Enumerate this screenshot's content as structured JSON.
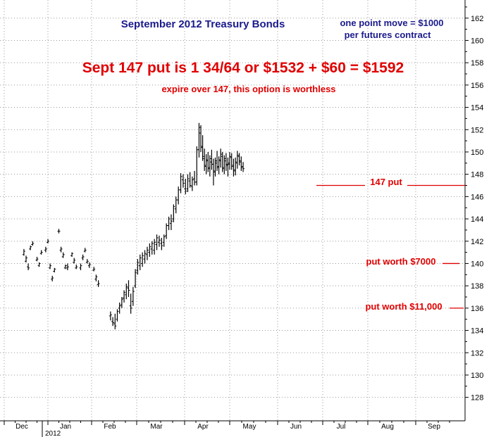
{
  "chart_data": {
    "type": "bar",
    "subtype": "ohlc",
    "title": "September 2012 Treasury Bonds",
    "note_line1": "one point move = $1000",
    "note_line2": "per futures contract",
    "headline": "Sept 147 put is 1 34/64 or $1532 + $60 = $1592",
    "subheadline": "expire over 147, this option is worthless",
    "y_axis": {
      "side": "right",
      "ylim": [
        126,
        163
      ],
      "ticks": [
        128,
        130,
        132,
        134,
        136,
        138,
        140,
        142,
        144,
        146,
        148,
        150,
        152,
        154,
        156,
        158,
        160,
        162
      ]
    },
    "x_axis": {
      "months": [
        "Dec",
        "Jan",
        "Feb",
        "Mar",
        "Apr",
        "May",
        "Jun",
        "Jul",
        "Aug",
        "Sep"
      ],
      "year_label": "2012",
      "grid": "dotted"
    },
    "series": [
      {
        "kind": "ohlc",
        "bars": [
          [
            0.45,
            140.8,
            141.3,
            140.7,
            141.1
          ],
          [
            0.5,
            140.2,
            140.7,
            140.1,
            140.5
          ],
          [
            0.55,
            139.7,
            140.0,
            139.4,
            139.6
          ],
          [
            0.6,
            141.3,
            141.6,
            141.2,
            141.5
          ],
          [
            0.65,
            141.7,
            142.0,
            141.6,
            141.8
          ],
          [
            0.75,
            140.3,
            140.6,
            140.2,
            140.4
          ],
          [
            0.8,
            139.8,
            140.1,
            139.7,
            140.0
          ],
          [
            0.85,
            140.9,
            141.2,
            140.8,
            141.0
          ],
          [
            0.95,
            141.2,
            141.5,
            141.0,
            141.3
          ],
          [
            1.0,
            141.9,
            142.2,
            141.8,
            142.0
          ],
          [
            1.05,
            139.6,
            140.0,
            139.5,
            139.8
          ],
          [
            1.1,
            138.6,
            138.9,
            138.4,
            138.7
          ],
          [
            1.15,
            139.3,
            139.6,
            139.2,
            139.5
          ],
          [
            1.25,
            142.9,
            143.1,
            142.7,
            142.9
          ],
          [
            1.3,
            141.2,
            141.5,
            141.0,
            141.3
          ],
          [
            1.35,
            140.6,
            141.0,
            140.5,
            140.8
          ],
          [
            1.4,
            139.6,
            139.9,
            139.5,
            139.8
          ],
          [
            1.45,
            139.6,
            140.0,
            139.4,
            139.7
          ],
          [
            1.55,
            140.7,
            141.0,
            140.6,
            140.9
          ],
          [
            1.6,
            140.1,
            140.5,
            140.0,
            140.3
          ],
          [
            1.65,
            139.6,
            139.9,
            139.5,
            139.7
          ],
          [
            1.75,
            139.6,
            140.0,
            139.4,
            139.8
          ],
          [
            1.8,
            140.5,
            140.8,
            140.3,
            140.6
          ],
          [
            1.85,
            141.1,
            141.4,
            141.0,
            141.2
          ],
          [
            1.9,
            140.1,
            140.4,
            140.0,
            140.2
          ],
          [
            1.95,
            139.8,
            140.1,
            139.6,
            139.9
          ],
          [
            2.05,
            139.4,
            139.7,
            139.3,
            139.5
          ],
          [
            2.1,
            138.6,
            139.0,
            138.4,
            138.8
          ],
          [
            2.15,
            138.1,
            138.5,
            137.9,
            138.2
          ],
          [
            2.42,
            135.3,
            135.7,
            134.9,
            135.4
          ],
          [
            2.47,
            134.8,
            135.2,
            134.4,
            134.7
          ],
          [
            2.52,
            134.6,
            135.5,
            134.1,
            134.4
          ],
          [
            2.57,
            135.0,
            135.9,
            134.8,
            135.7
          ],
          [
            2.62,
            136.0,
            136.5,
            135.5,
            136.2
          ],
          [
            2.67,
            136.3,
            137.0,
            136.0,
            136.8
          ],
          [
            2.72,
            136.9,
            137.6,
            136.5,
            137.4
          ],
          [
            2.77,
            137.2,
            138.2,
            136.8,
            137.9
          ],
          [
            2.82,
            137.8,
            138.5,
            137.0,
            137.6
          ],
          [
            2.87,
            136.2,
            137.3,
            135.5,
            136.0
          ],
          [
            2.92,
            136.6,
            137.9,
            136.2,
            137.5
          ],
          [
            2.97,
            138.0,
            139.5,
            137.8,
            139.2
          ],
          [
            3.02,
            139.4,
            140.4,
            139.0,
            140.1
          ],
          [
            3.07,
            139.8,
            140.8,
            139.4,
            140.5
          ],
          [
            3.12,
            140.0,
            141.0,
            139.7,
            140.7
          ],
          [
            3.17,
            140.4,
            141.2,
            140.0,
            140.9
          ],
          [
            3.22,
            140.8,
            141.5,
            140.3,
            141.2
          ],
          [
            3.27,
            141.0,
            141.8,
            140.6,
            141.5
          ],
          [
            3.32,
            141.3,
            142.0,
            140.8,
            141.8
          ],
          [
            3.37,
            141.2,
            142.2,
            140.8,
            141.9
          ],
          [
            3.42,
            141.7,
            142.6,
            141.2,
            142.3
          ],
          [
            3.47,
            141.9,
            142.5,
            141.5,
            142.1
          ],
          [
            3.52,
            141.8,
            142.3,
            141.2,
            141.6
          ],
          [
            3.57,
            141.9,
            142.6,
            141.5,
            142.4
          ],
          [
            3.62,
            142.5,
            143.6,
            142.2,
            143.4
          ],
          [
            3.67,
            143.4,
            144.2,
            143.0,
            144.0
          ],
          [
            3.72,
            143.6,
            144.4,
            143.0,
            143.8
          ],
          [
            3.77,
            144.0,
            145.3,
            143.7,
            145.1
          ],
          [
            3.82,
            144.9,
            146.0,
            144.5,
            145.7
          ],
          [
            3.87,
            145.7,
            146.9,
            145.3,
            146.6
          ],
          [
            3.92,
            146.6,
            148.1,
            146.3,
            147.8
          ],
          [
            3.97,
            147.5,
            148.0,
            146.8,
            147.2
          ],
          [
            4.02,
            146.7,
            147.6,
            146.2,
            146.5
          ],
          [
            4.07,
            146.7,
            148.0,
            146.4,
            147.6
          ],
          [
            4.12,
            147.4,
            148.2,
            146.8,
            147.0
          ],
          [
            4.17,
            146.9,
            147.8,
            146.5,
            147.5
          ],
          [
            4.22,
            147.6,
            148.3,
            147.0,
            147.3
          ],
          [
            4.27,
            147.3,
            150.5,
            147.0,
            150.2
          ],
          [
            4.32,
            150.2,
            152.6,
            149.5,
            152.2
          ],
          [
            4.36,
            151.7,
            152.4,
            150.0,
            150.5
          ],
          [
            4.4,
            150.4,
            151.5,
            149.2,
            149.6
          ],
          [
            4.44,
            149.4,
            150.3,
            148.3,
            148.8
          ],
          [
            4.48,
            148.7,
            149.8,
            148.0,
            149.3
          ],
          [
            4.52,
            149.2,
            150.0,
            148.2,
            148.5
          ],
          [
            4.56,
            148.6,
            149.7,
            147.8,
            149.4
          ],
          [
            4.6,
            149.1,
            150.2,
            148.4,
            148.9
          ],
          [
            4.64,
            148.9,
            149.4,
            147.0,
            148.2
          ],
          [
            4.68,
            148.3,
            149.5,
            147.8,
            149.2
          ],
          [
            4.72,
            149.0,
            150.1,
            148.3,
            148.6
          ],
          [
            4.76,
            148.7,
            149.6,
            148.0,
            149.3
          ],
          [
            4.8,
            149.2,
            150.3,
            148.6,
            149.8
          ],
          [
            4.84,
            149.6,
            150.0,
            148.2,
            148.5
          ],
          [
            4.88,
            148.6,
            149.7,
            148.0,
            149.4
          ],
          [
            4.92,
            149.2,
            149.9,
            148.3,
            148.8
          ],
          [
            4.96,
            148.9,
            149.5,
            147.8,
            149.0
          ],
          [
            5.0,
            148.9,
            150.0,
            148.4,
            149.6
          ],
          [
            5.04,
            149.5,
            149.9,
            148.4,
            148.7
          ],
          [
            5.08,
            148.8,
            149.4,
            147.8,
            148.3
          ],
          [
            5.12,
            148.4,
            149.5,
            147.9,
            149.1
          ],
          [
            5.16,
            149.0,
            150.1,
            148.5,
            149.7
          ],
          [
            5.2,
            149.6,
            149.9,
            148.8,
            149.2
          ],
          [
            5.24,
            149.1,
            149.6,
            148.3,
            148.6
          ],
          [
            5.28,
            148.7,
            149.1,
            148.2,
            148.5
          ]
        ]
      }
    ],
    "annotations": [
      {
        "text": "147 put",
        "y": 147
      },
      {
        "text": "put worth $7000",
        "y": 140
      },
      {
        "text": "put worth $11,000",
        "y": 136
      }
    ],
    "colors": {
      "title": "#1a1a8c",
      "annotation": "#e00000",
      "bars": "#000000",
      "grid": "#9a9a9a"
    }
  }
}
